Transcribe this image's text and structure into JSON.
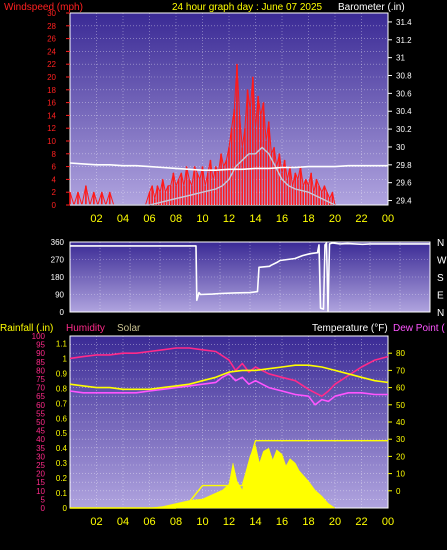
{
  "colors": {
    "background": "#000000",
    "plot_top": "#3a2a95",
    "plot_bottom": "#b0a4df",
    "grid": "#ffffff",
    "wind_text": "#ff2020",
    "white": "#ffffff",
    "yellow": "#ffff00",
    "magenta": "#ff2a8a",
    "violet": "#ff55ff",
    "solar_label": "#c8c090"
  },
  "chart_data": [
    {
      "type": "line",
      "title": "24 hour graph day : June 07 2025",
      "y_left_label": "Windspeed (mph)",
      "y_right_label": "Barometer (.in)",
      "y_left_range": [
        0,
        30
      ],
      "y_left_ticks": [
        "0",
        "2",
        "4",
        "6",
        "8",
        "10",
        "12",
        "14",
        "16",
        "18",
        "20",
        "22",
        "24",
        "26",
        "28",
        "30"
      ],
      "y_right_range": [
        29.35,
        31.5
      ],
      "y_right_ticks": [
        "29.4",
        "29.6",
        "29.8",
        "30",
        "30.2",
        "30.4",
        "30.6",
        "30.8",
        "31",
        "31.2",
        "31.4"
      ],
      "x_range": [
        0,
        24
      ],
      "x_ticks": [
        "02",
        "04",
        "06",
        "08",
        "10",
        "12",
        "14",
        "16",
        "18",
        "20",
        "22",
        "00"
      ],
      "series": [
        {
          "name": "Windspeed",
          "color": "#ff1a1a",
          "axis": "left",
          "x": [
            0.0,
            0.3,
            0.6,
            0.9,
            1.2,
            1.5,
            1.8,
            2.1,
            2.4,
            2.7,
            3.0,
            3.3,
            3.6,
            3.9,
            4.2,
            4.5,
            4.8,
            5.1,
            5.4,
            5.7,
            6.0,
            6.2,
            6.4,
            6.6,
            6.8,
            7.0,
            7.2,
            7.4,
            7.6,
            7.8,
            8.0,
            8.2,
            8.4,
            8.6,
            8.8,
            9.0,
            9.2,
            9.4,
            9.6,
            9.8,
            10.0,
            10.2,
            10.4,
            10.6,
            10.8,
            11.0,
            11.2,
            11.4,
            11.6,
            11.8,
            12.0,
            12.2,
            12.4,
            12.6,
            12.8,
            13.0,
            13.2,
            13.4,
            13.6,
            13.8,
            14.0,
            14.2,
            14.4,
            14.6,
            14.8,
            15.0,
            15.2,
            15.4,
            15.6,
            15.8,
            16.0,
            16.2,
            16.4,
            16.6,
            16.8,
            17.0,
            17.2,
            17.4,
            17.6,
            17.8,
            18.0,
            18.2,
            18.4,
            18.6,
            18.8,
            19.0,
            19.2,
            19.4,
            19.6,
            19.8,
            20.0
          ],
          "values": [
            2,
            0,
            2,
            0,
            3,
            0,
            2,
            0,
            2,
            0,
            2,
            0,
            0,
            0,
            0,
            0,
            0,
            0,
            0,
            0,
            2,
            3,
            1,
            3,
            2,
            4,
            2,
            3,
            3,
            5,
            3,
            4,
            5,
            3,
            6,
            4,
            3,
            6,
            5,
            4,
            6,
            3,
            5,
            7,
            4,
            6,
            5,
            8,
            6,
            7,
            9,
            12,
            15,
            22,
            14,
            9,
            12,
            18,
            15,
            20,
            12,
            17,
            14,
            16,
            10,
            13,
            8,
            9,
            6,
            8,
            5,
            7,
            4,
            6,
            3,
            5,
            4,
            6,
            3,
            4,
            3,
            5,
            2,
            4,
            3,
            2,
            3,
            2,
            1,
            2,
            0
          ]
        },
        {
          "name": "Wind average",
          "color": "#c8c8d8",
          "axis": "left",
          "x": [
            0,
            6,
            7,
            8,
            9,
            10,
            11,
            11.5,
            12,
            12.5,
            13,
            13.5,
            14,
            14.5,
            15,
            15.5,
            16,
            16.5,
            17,
            18,
            19,
            20
          ],
          "values": [
            0,
            0,
            0.5,
            1,
            1.5,
            2,
            2.5,
            3,
            4,
            6,
            7,
            8,
            8,
            9,
            8,
            6,
            4,
            3,
            2.5,
            2,
            1,
            0
          ]
        },
        {
          "name": "Barometer",
          "color": "#ffffff",
          "axis": "right",
          "x": [
            0,
            1,
            2,
            3,
            4,
            5,
            6,
            7,
            8,
            9,
            10,
            11,
            12,
            13,
            14,
            15,
            16,
            17,
            18,
            19,
            20,
            21,
            22,
            23,
            24
          ],
          "values": [
            29.82,
            29.81,
            29.8,
            29.8,
            29.79,
            29.79,
            29.78,
            29.77,
            29.76,
            29.75,
            29.74,
            29.74,
            29.75,
            29.75,
            29.76,
            29.76,
            29.77,
            29.77,
            29.78,
            29.78,
            29.78,
            29.79,
            29.79,
            29.79,
            29.79
          ]
        }
      ]
    },
    {
      "type": "line",
      "y_left_range": [
        0,
        360
      ],
      "y_left_ticks": [
        "0",
        "90",
        "180",
        "270",
        "360"
      ],
      "y_right_ticks": [
        "N",
        "W",
        "S",
        "E",
        "N"
      ],
      "x_range": [
        0,
        24
      ],
      "series": [
        {
          "name": "Wind direction",
          "color": "#ffffff",
          "x": [
            0,
            8.4,
            8.45,
            8.6,
            8.7,
            9.5,
            10,
            11,
            12,
            12.5,
            12.6,
            13.3,
            13.4,
            13.8,
            14.0,
            14.5,
            15.0,
            15.5,
            16.0,
            16.5,
            16.6,
            16.7,
            16.9,
            17.0,
            17.1,
            17.2,
            17.3,
            17.5,
            18.0,
            18.5,
            19.0,
            19.5,
            20.0,
            20.5,
            21,
            22,
            23,
            24
          ],
          "values": [
            340,
            340,
            60,
            100,
            90,
            92,
            95,
            98,
            100,
            105,
            230,
            235,
            240,
            255,
            265,
            270,
            275,
            290,
            300,
            305,
            345,
            20,
            15,
            345,
            355,
            5,
            350,
            355,
            350,
            352,
            350,
            348,
            350,
            350,
            350,
            350,
            350,
            350
          ]
        }
      ]
    },
    {
      "type": "line",
      "y_left_label": "Rainfall (.in)",
      "y_humidity_label": "Humidity",
      "y_solar_label": "Solar",
      "y_right_label": "Temperature (°F)",
      "y_dew_label": "Dew Point (",
      "y_left_ticks": [
        "0",
        "0.1",
        "0.2",
        "0.3",
        "0.4",
        "0.5",
        "0.6",
        "0.7",
        "0.8",
        "0.9",
        "1",
        "1.1"
      ],
      "y_humidity_ticks": [
        "0",
        "5",
        "10",
        "15",
        "20",
        "25",
        "30",
        "35",
        "40",
        "45",
        "50",
        "55",
        "60",
        "65",
        "70",
        "75",
        "80",
        "85",
        "90",
        "95",
        "100"
      ],
      "y_right_ticks": [
        "0",
        "10",
        "20",
        "30",
        "40",
        "50",
        "60",
        "70",
        "80"
      ],
      "y_right_range": [
        -10,
        90
      ],
      "x_range": [
        0,
        24
      ],
      "x_ticks": [
        "02",
        "04",
        "06",
        "08",
        "10",
        "12",
        "14",
        "16",
        "18",
        "20",
        "22",
        "00"
      ],
      "series": [
        {
          "name": "Temperature",
          "color": "#ffff00",
          "axis": "right",
          "x": [
            0,
            1,
            2,
            3,
            4,
            5,
            6,
            7,
            8,
            9,
            10,
            11,
            12,
            13,
            14,
            15,
            16,
            17,
            18,
            19,
            20,
            21,
            22,
            23,
            24
          ],
          "values": [
            62,
            61,
            60,
            60,
            59,
            59,
            59,
            60,
            61,
            62,
            64,
            66,
            69,
            70,
            70,
            71,
            72,
            73,
            73,
            72,
            70,
            68,
            66,
            64,
            63
          ]
        },
        {
          "name": "Dew Point",
          "color": "#ff55ff",
          "axis": "right",
          "x": [
            0,
            1,
            2,
            3,
            4,
            5,
            6,
            7,
            8,
            9,
            10,
            11,
            11.5,
            12,
            12.5,
            13,
            13.5,
            14,
            15,
            16,
            17,
            18,
            18.5,
            19,
            19.5,
            20,
            21,
            22,
            23,
            24
          ],
          "values": [
            58,
            57,
            57,
            57,
            57,
            57,
            58,
            59,
            60,
            61,
            62,
            63,
            66,
            68,
            64,
            66,
            62,
            64,
            60,
            58,
            56,
            55,
            50,
            53,
            52,
            55,
            57,
            57,
            56,
            56
          ]
        },
        {
          "name": "Humidity",
          "color": "#ff2a8a",
          "axis": "humidity",
          "x": [
            0,
            1,
            2,
            3,
            4,
            5,
            6,
            7,
            8,
            9,
            10,
            11,
            12,
            12.5,
            13,
            13.5,
            14,
            15,
            16,
            17,
            18,
            18.5,
            19,
            19.5,
            20,
            21,
            22,
            23,
            24
          ],
          "values": [
            87,
            88,
            89,
            89,
            90,
            90,
            91,
            92,
            93,
            93,
            92,
            91,
            86,
            80,
            84,
            79,
            82,
            78,
            76,
            74,
            69,
            67,
            65,
            68,
            72,
            77,
            82,
            86,
            88
          ]
        },
        {
          "name": "Rainfall",
          "color": "#ffff00",
          "axis": "left",
          "x": [
            0,
            6,
            7,
            8,
            9,
            10,
            11,
            12,
            13,
            14,
            15,
            16,
            17,
            18,
            19,
            20,
            21,
            22,
            23,
            24
          ],
          "values": [
            0,
            0,
            0,
            0,
            0.04,
            0.15,
            0.15,
            0.15,
            0.15,
            0.45,
            0.45,
            0.45,
            0.45,
            0.45,
            0.45,
            0.45,
            0.45,
            0.45,
            0.45,
            0.45
          ]
        },
        {
          "name": "Solar",
          "color": "#ffff00",
          "axis": "left",
          "x": [
            6,
            7,
            8,
            9,
            10,
            11,
            11.5,
            12,
            12.3,
            12.6,
            13,
            13.3,
            13.6,
            14,
            14.3,
            14.6,
            15,
            15.3,
            15.6,
            16,
            16.3,
            16.6,
            17,
            17.3,
            17.6,
            18,
            18.5,
            19,
            19.5,
            20
          ],
          "values": [
            0,
            0.01,
            0.03,
            0.05,
            0.06,
            0.1,
            0.12,
            0.16,
            0.3,
            0.18,
            0.12,
            0.25,
            0.35,
            0.42,
            0.3,
            0.38,
            0.4,
            0.32,
            0.39,
            0.36,
            0.28,
            0.33,
            0.3,
            0.25,
            0.22,
            0.18,
            0.12,
            0.08,
            0.03,
            0
          ]
        }
      ]
    }
  ]
}
